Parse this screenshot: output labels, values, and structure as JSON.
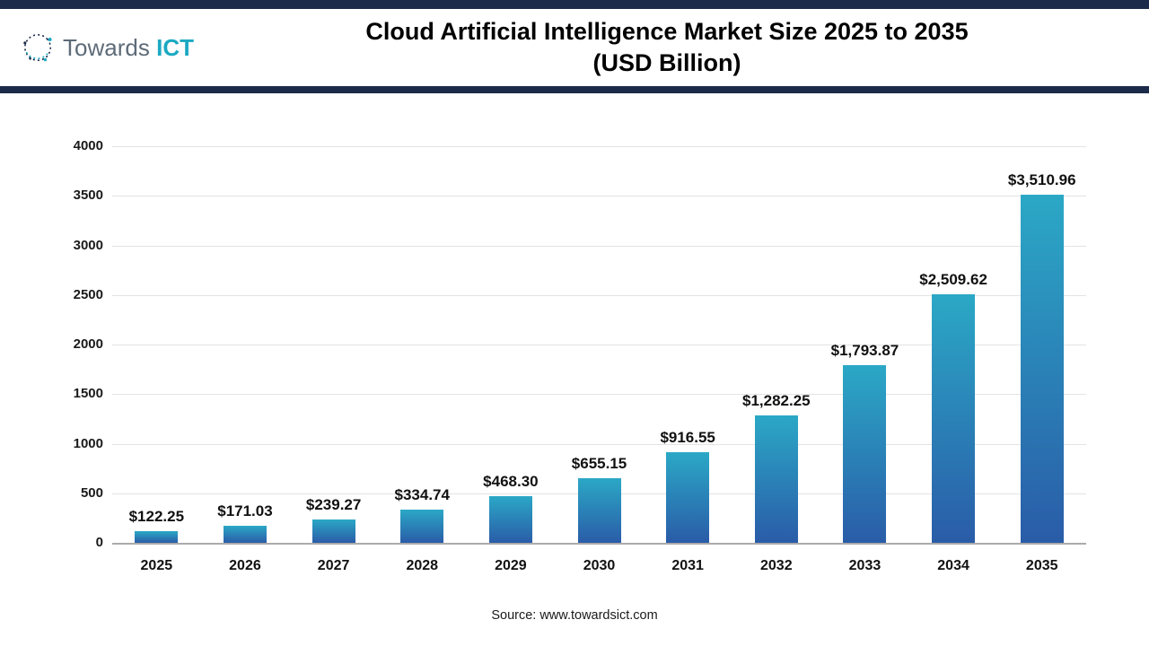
{
  "header": {
    "logo": {
      "towards": "Towards",
      "ict": "ICT"
    },
    "title_line1": "Cloud Artificial Intelligence Market Size 2025 to 2035",
    "title_line2": "(USD Billion)"
  },
  "chart_data": {
    "type": "bar",
    "title": "Cloud Artificial Intelligence Market Size 2025 to 2035 (USD Billion)",
    "categories": [
      "2025",
      "2026",
      "2027",
      "2028",
      "2029",
      "2030",
      "2031",
      "2032",
      "2033",
      "2034",
      "2035"
    ],
    "values": [
      122.25,
      171.03,
      239.27,
      334.74,
      468.3,
      655.15,
      916.55,
      1282.25,
      1793.87,
      2509.62,
      3510.96
    ],
    "labels": [
      "$122.25",
      "$171.03",
      "$239.27",
      "$334.74",
      "$468.30",
      "$655.15",
      "$916.55",
      "$1,282.25",
      "$1,793.87",
      "$2,509.62",
      "$3,510.96"
    ],
    "xlabel": "",
    "ylabel": "",
    "ylim": [
      0,
      4000
    ],
    "yticks": [
      0,
      500,
      1000,
      1500,
      2000,
      2500,
      3000,
      3500,
      4000
    ],
    "grid": true,
    "legend": "none",
    "bar_gradient": {
      "top": "#2BA8C6",
      "bottom": "#2A5CA8"
    },
    "accent_navy": "#1C2B4A",
    "accent_teal": "#1BA9C2"
  },
  "footer": {
    "source": "Source: www.towardsict.com"
  }
}
